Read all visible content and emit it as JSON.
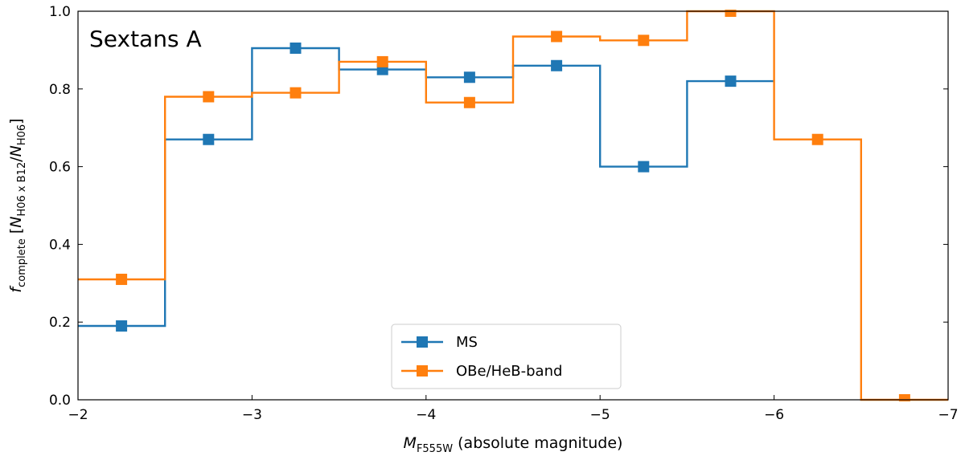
{
  "chart_data": {
    "type": "line",
    "title": "",
    "annotation": "Sextans A",
    "xlabel": {
      "symbol": "M",
      "sub": "F555W",
      "rest": " (absolute magnitude)"
    },
    "ylabel": {
      "symbol": "f",
      "sub": "complete",
      "bracket_open": " [",
      "num_symbol": "N",
      "num_sub": "H06 x B12",
      "slash": "/",
      "den_symbol": "N",
      "den_sub": "H06",
      "bracket_close": "]"
    },
    "xlim": [
      -2,
      -7
    ],
    "ylim": [
      0.0,
      1.0
    ],
    "xticks": [
      -2,
      -3,
      -4,
      -5,
      -6,
      -7
    ],
    "xtick_labels": [
      "−2",
      "−3",
      "−4",
      "−5",
      "−6",
      "−7"
    ],
    "yticks": [
      0.0,
      0.2,
      0.4,
      0.6,
      0.8,
      1.0
    ],
    "ytick_labels": [
      "0.0",
      "0.2",
      "0.4",
      "0.6",
      "0.8",
      "1.0"
    ],
    "bin_edges": [
      -2.0,
      -2.5,
      -3.0,
      -3.5,
      -4.0,
      -4.5,
      -5.0,
      -5.5,
      -6.0,
      -6.5,
      -7.0
    ],
    "bin_centers": [
      -2.25,
      -2.75,
      -3.25,
      -3.75,
      -4.25,
      -4.75,
      -5.25,
      -5.75,
      -6.25,
      -6.75
    ],
    "series": [
      {
        "name": "MS",
        "color": "#1f77b4",
        "values": [
          0.19,
          0.67,
          0.905,
          0.85,
          0.83,
          0.86,
          0.6,
          0.82
        ]
      },
      {
        "name": "OBe/HeB-band",
        "color": "#ff7f0e",
        "values": [
          0.31,
          0.78,
          0.79,
          0.87,
          0.765,
          0.935,
          0.925,
          1.0,
          0.67,
          0.0
        ]
      }
    ],
    "legend_position": "lower-center",
    "grid": false
  }
}
